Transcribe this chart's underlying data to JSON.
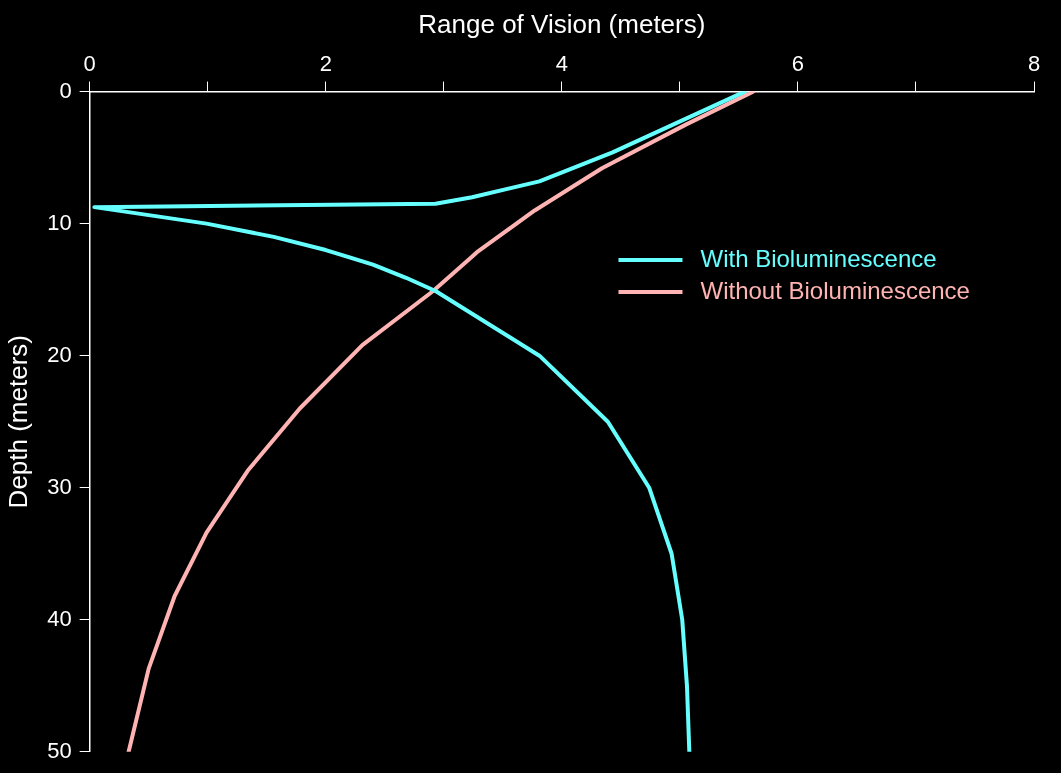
{
  "chart_data": {
    "type": "line",
    "xlabel": "Range of Vision (meters)",
    "ylabel": "Depth (meters)",
    "xlim": [
      0,
      8
    ],
    "xticks": [
      0,
      {
        "value": 1,
        "label": null
      },
      2,
      {
        "value": 3,
        "label": null
      },
      4,
      {
        "value": 5,
        "label": null
      },
      6,
      {
        "value": 7,
        "label": null
      },
      8
    ],
    "ylim": [
      50,
      0
    ],
    "yticks": [
      0,
      10,
      20,
      30,
      40,
      50
    ],
    "grid": false,
    "legend": "right",
    "marker": "none",
    "line_style": "solid",
    "series": [
      {
        "name": "With Bioluminescence",
        "color": "#66ffff",
        "x": [
          5.55,
          4.43,
          3.81,
          3.24,
          2.93,
          0.04,
          0.99,
          1.56,
          2.0,
          2.4,
          2.68,
          2.93,
          3.81,
          4.39,
          4.74,
          4.93,
          5.02,
          5.06,
          5.08
        ],
        "values": [
          0,
          4.6,
          6.8,
          8.0,
          8.5,
          8.75,
          10,
          11,
          12,
          13.1,
          14.1,
          15.1,
          20,
          25,
          30,
          35,
          40,
          45,
          50
        ]
      },
      {
        "name": "Without Bioluminescence",
        "color": "#ffb3b3",
        "x": [
          5.62,
          5.05,
          4.34,
          3.77,
          3.29,
          2.91,
          2.31,
          1.78,
          1.34,
          0.99,
          0.72,
          0.5,
          0.33
        ],
        "values": [
          0,
          2.5,
          5.8,
          9,
          12.1,
          15.1,
          19.2,
          24,
          28.7,
          33.4,
          38.2,
          43.7,
          50
        ]
      }
    ]
  }
}
